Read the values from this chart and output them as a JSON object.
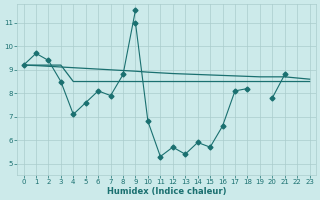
{
  "xlabel": "Humidex (Indice chaleur)",
  "bg_color": "#cceaea",
  "grid_color": "#aacccc",
  "line_color": "#1a7070",
  "xlim": [
    -0.5,
    23.5
  ],
  "ylim": [
    4.5,
    11.8
  ],
  "xticks": [
    0,
    1,
    2,
    3,
    4,
    5,
    6,
    7,
    8,
    9,
    10,
    11,
    12,
    13,
    14,
    15,
    16,
    17,
    18,
    19,
    20,
    21,
    22,
    23
  ],
  "yticks": [
    5,
    6,
    7,
    8,
    9,
    10,
    11
  ],
  "line1_x": [
    0,
    1,
    2,
    3,
    4,
    5,
    6,
    7,
    8,
    9,
    9,
    10,
    11,
    12,
    13,
    14,
    15,
    16,
    17,
    18,
    20,
    21
  ],
  "line1_y": [
    9.2,
    9.7,
    9.4,
    8.5,
    7.1,
    7.6,
    8.1,
    7.9,
    8.8,
    11.55,
    11.0,
    6.8,
    5.3,
    5.7,
    5.4,
    5.9,
    5.7,
    6.6,
    8.1,
    8.2,
    7.8,
    8.8
  ],
  "line2_x": [
    0,
    3,
    4,
    9,
    10,
    11,
    12,
    13,
    14,
    15,
    16,
    17,
    18,
    19,
    20,
    21,
    22,
    23
  ],
  "line2_y": [
    9.2,
    9.2,
    8.5,
    8.5,
    8.5,
    8.5,
    8.5,
    8.5,
    8.5,
    8.5,
    8.5,
    8.5,
    8.5,
    8.5,
    8.5,
    8.5,
    8.5,
    8.5
  ],
  "line3_x": [
    0,
    1,
    2,
    3,
    4,
    5,
    6,
    7,
    8,
    9,
    10,
    11,
    12,
    13,
    14,
    15,
    16,
    17,
    18,
    19,
    20,
    21,
    22,
    23
  ],
  "line3_y": [
    9.2,
    9.18,
    9.15,
    9.12,
    9.09,
    9.06,
    9.03,
    9.0,
    8.97,
    8.94,
    8.9,
    8.87,
    8.84,
    8.82,
    8.8,
    8.78,
    8.76,
    8.74,
    8.72,
    8.7,
    8.7,
    8.7,
    8.65,
    8.6
  ]
}
